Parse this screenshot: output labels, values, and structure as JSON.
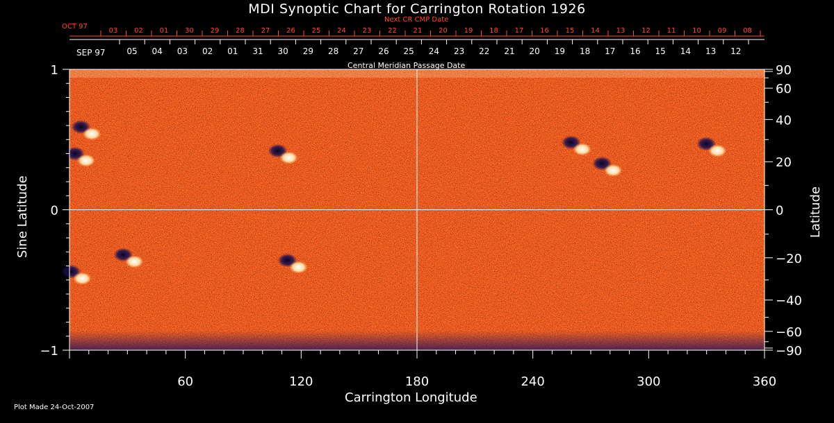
{
  "chart_data": {
    "type": "heatmap",
    "title": "MDI Synoptic Chart for Carrington Rotation 1926",
    "xlabel": "Carrington Longitude",
    "ylabel_left": "Sine Latitude",
    "ylabel_right": "Latitude",
    "xlim": [
      0,
      360
    ],
    "ylim": [
      -1,
      1
    ],
    "x_ticks": [
      60,
      120,
      180,
      240,
      300,
      360
    ],
    "y_left_ticks": [
      1,
      0,
      -1
    ],
    "y_right_ticks": [
      90,
      60,
      40,
      20,
      0,
      -20,
      -40,
      -60,
      -90
    ],
    "top_axis_1": {
      "label": "Next CR CMP Date",
      "month_label": "OCT 97",
      "ticks": [
        "03",
        "02",
        "01",
        "30",
        "29",
        "28",
        "27",
        "26",
        "25",
        "24",
        "23",
        "22",
        "21",
        "20",
        "19",
        "18",
        "17",
        "16",
        "15",
        "14",
        "13",
        "12",
        "11",
        "10",
        "09",
        "08"
      ]
    },
    "top_axis_2": {
      "label": "Central Meridian Passage Date",
      "month_label": "SEP 97",
      "ticks": [
        "05",
        "04",
        "03",
        "02",
        "01",
        "31",
        "30",
        "29",
        "28",
        "27",
        "26",
        "25",
        "24",
        "23",
        "22",
        "21",
        "20",
        "19",
        "18",
        "17",
        "16",
        "15",
        "14",
        "13",
        "12"
      ]
    },
    "active_regions": [
      {
        "lon": 8,
        "sinlat": 0.57,
        "polarity": "bipolar"
      },
      {
        "lon": 5,
        "sinlat": 0.38,
        "polarity": "bipolar"
      },
      {
        "lon": 110,
        "sinlat": 0.4,
        "polarity": "bipolar"
      },
      {
        "lon": 262,
        "sinlat": 0.46,
        "polarity": "bipolar"
      },
      {
        "lon": 278,
        "sinlat": 0.31,
        "polarity": "bipolar"
      },
      {
        "lon": 332,
        "sinlat": 0.45,
        "polarity": "bipolar"
      },
      {
        "lon": 30,
        "sinlat": -0.34,
        "polarity": "bipolar"
      },
      {
        "lon": 3,
        "sinlat": -0.46,
        "polarity": "bipolar"
      },
      {
        "lon": 115,
        "sinlat": -0.38,
        "polarity": "bipolar"
      }
    ],
    "colors": {
      "background": "#000000",
      "field_mid": "#e8420a",
      "positive": "#fff6c8",
      "negative": "#0a0a3a",
      "accent_red": "#ff4a2a"
    }
  },
  "footer": "Plot Made 24-Oct-2007"
}
